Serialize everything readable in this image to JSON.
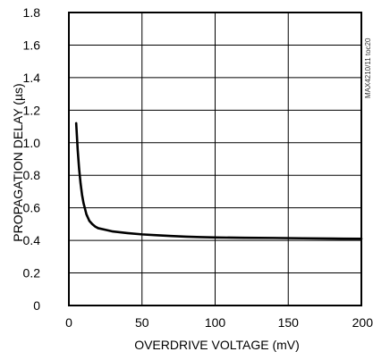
{
  "chart_data": {
    "type": "line",
    "title": "",
    "xlabel": "OVERDRIVE VOLTAGE (mV)",
    "ylabel": "PROPAGATION DELAY (µs)",
    "xlim": [
      0,
      200
    ],
    "ylim": [
      0,
      1.8
    ],
    "xticks": [
      0,
      50,
      100,
      150,
      200
    ],
    "yticks": [
      0,
      0.2,
      0.4,
      0.6,
      0.8,
      1.0,
      1.2,
      1.4,
      1.6,
      1.8
    ],
    "xtick_labels": [
      "0",
      "50",
      "100",
      "150",
      "200"
    ],
    "ytick_labels": [
      "0",
      "0.2",
      "0.4",
      "0.6",
      "0.8",
      "1.0",
      "1.2",
      "1.4",
      "1.6",
      "1.8"
    ],
    "grid": true,
    "annotation": "MAX4210/11 toc20",
    "series": [
      {
        "name": "",
        "x": [
          5,
          5.5,
          6,
          7,
          8,
          9,
          10,
          12,
          14,
          16,
          18,
          20,
          25,
          30,
          40,
          50,
          60,
          70,
          80,
          90,
          100,
          120,
          140,
          160,
          180,
          200
        ],
        "y": [
          1.12,
          1.04,
          0.96,
          0.84,
          0.75,
          0.68,
          0.63,
          0.56,
          0.52,
          0.5,
          0.485,
          0.475,
          0.465,
          0.455,
          0.445,
          0.437,
          0.432,
          0.427,
          0.423,
          0.42,
          0.418,
          0.416,
          0.415,
          0.413,
          0.411,
          0.41
        ]
      }
    ]
  }
}
